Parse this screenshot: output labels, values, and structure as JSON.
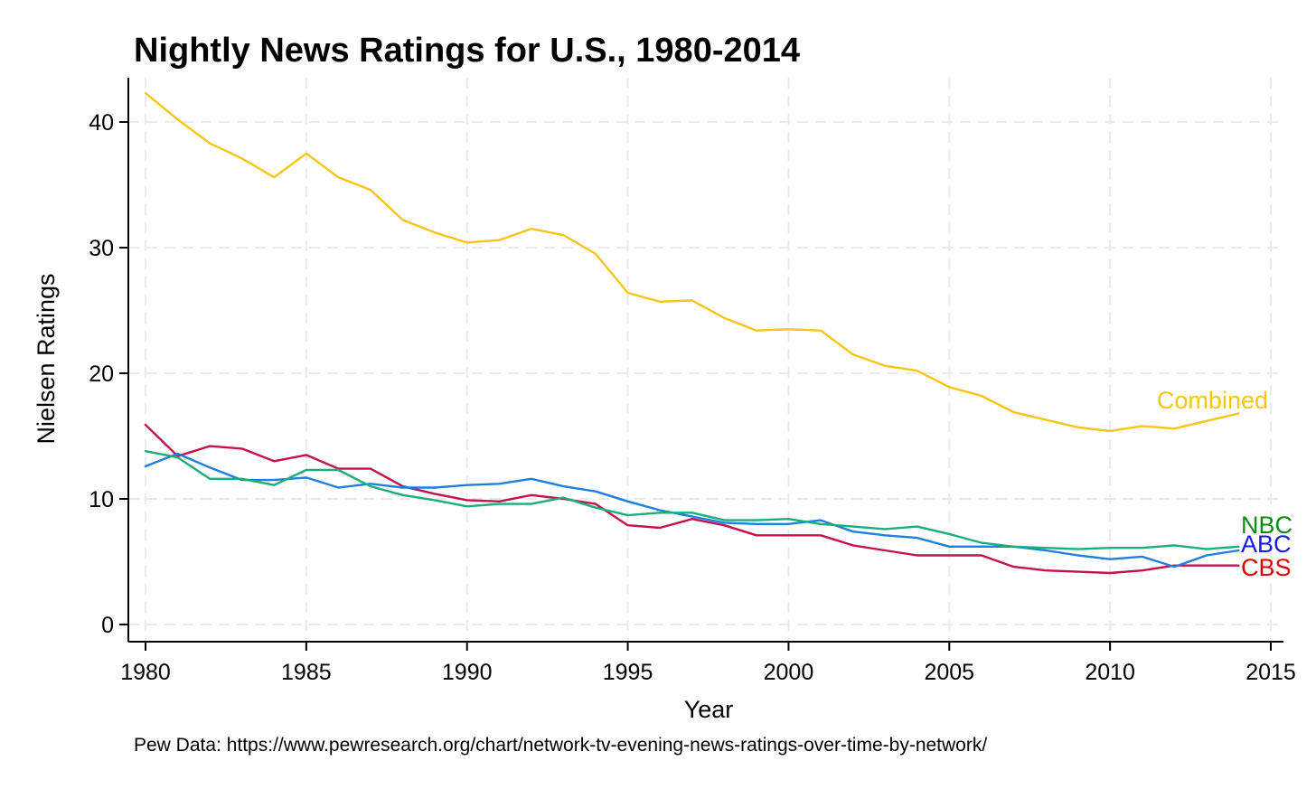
{
  "chart_data": {
    "type": "line",
    "title": "Nightly News Ratings for U.S., 1980-2014",
    "xlabel": "Year",
    "ylabel": "Nielsen Ratings",
    "note": "Pew Data: https://www.pewresearch.org/chart/network-tv-evening-news-ratings-over-time-by-network/",
    "xlim": [
      1980,
      2015
    ],
    "ylim": [
      0,
      43
    ],
    "x_ticks": [
      1980,
      1985,
      1990,
      1995,
      2000,
      2005,
      2010,
      2015
    ],
    "y_ticks": [
      0,
      10,
      20,
      30,
      40
    ],
    "grid": true,
    "legend": "none",
    "x": [
      1980,
      1981,
      1982,
      1983,
      1984,
      1985,
      1986,
      1987,
      1988,
      1989,
      1990,
      1991,
      1992,
      1993,
      1994,
      1995,
      1996,
      1997,
      1998,
      1999,
      2000,
      2001,
      2002,
      2003,
      2004,
      2005,
      2006,
      2007,
      2008,
      2009,
      2010,
      2011,
      2012,
      2013,
      2014
    ],
    "series": [
      {
        "name": "Combined",
        "color": "#f5c518",
        "label_color": "#f5c518",
        "values": [
          42.3,
          40.2,
          38.3,
          37.1,
          35.6,
          37.5,
          35.6,
          34.6,
          32.2,
          31.2,
          30.4,
          30.6,
          31.5,
          31.0,
          29.5,
          26.4,
          25.7,
          25.8,
          24.4,
          23.4,
          23.5,
          23.4,
          21.5,
          20.6,
          20.2,
          18.9,
          18.2,
          16.9,
          16.3,
          15.7,
          15.4,
          15.8,
          15.6,
          16.2,
          16.8
        ]
      },
      {
        "name": "NBC",
        "color": "#1aae7c",
        "label_color": "#0e8a0e",
        "values": [
          13.8,
          13.3,
          11.6,
          11.6,
          11.1,
          12.3,
          12.3,
          11.0,
          10.3,
          9.9,
          9.4,
          9.6,
          9.6,
          10.1,
          9.3,
          8.7,
          8.9,
          8.9,
          8.3,
          8.3,
          8.4,
          8.0,
          7.8,
          7.6,
          7.8,
          7.2,
          6.5,
          6.2,
          6.1,
          6.0,
          6.1,
          6.1,
          6.3,
          6.0,
          6.2
        ]
      },
      {
        "name": "ABC",
        "color": "#1f7fe0",
        "label_color": "#1a1aee",
        "values": [
          12.6,
          13.6,
          12.5,
          11.5,
          11.5,
          11.7,
          10.9,
          11.2,
          10.9,
          10.9,
          11.1,
          11.2,
          11.6,
          11.0,
          10.6,
          9.8,
          9.1,
          8.6,
          8.1,
          8.0,
          8.0,
          8.3,
          7.4,
          7.1,
          6.9,
          6.2,
          6.2,
          6.2,
          5.9,
          5.5,
          5.2,
          5.4,
          4.6,
          5.5,
          5.9
        ]
      },
      {
        "name": "CBS",
        "color": "#c4124d",
        "label_color": "#e00000",
        "values": [
          15.9,
          13.4,
          14.2,
          14.0,
          13.0,
          13.5,
          12.4,
          12.4,
          11.0,
          10.4,
          9.9,
          9.8,
          10.3,
          10.0,
          9.6,
          7.9,
          7.7,
          8.4,
          7.9,
          7.1,
          7.1,
          7.1,
          6.3,
          5.9,
          5.5,
          5.5,
          5.5,
          4.6,
          4.3,
          4.2,
          4.1,
          4.3,
          4.7,
          4.7,
          4.7
        ]
      }
    ]
  }
}
